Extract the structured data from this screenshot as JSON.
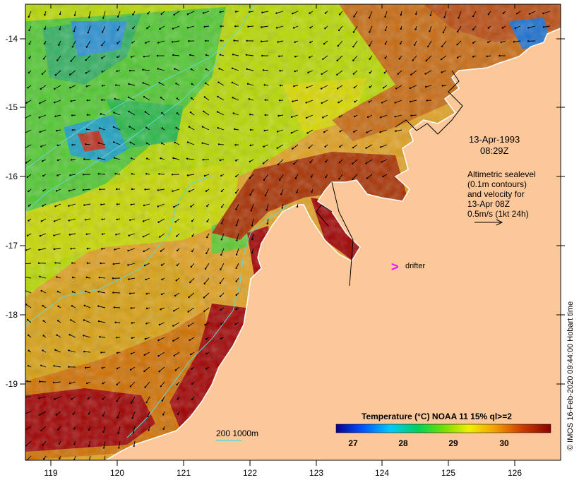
{
  "map": {
    "date_line": "13-Apr-1993",
    "time_line": "08:29Z",
    "altimetry_lines": [
      "Altimetric sealevel",
      "(0.1m contours)",
      "and velocity for",
      "13-Apr 08Z",
      "0.5m/s (1kt 24h)"
    ],
    "drifter_symbol": ">",
    "drifter_label": "drifter",
    "depth_legend_label": "200 1000m",
    "credit": "© IMOS 16-Feb-2020 09:44:00 Hobart time",
    "colors": {
      "land": "#fcc89a",
      "coastline": "#ffffff",
      "arrows": "#000000",
      "contour": "#5fd8d8",
      "drifter": "#ff00ff"
    },
    "x_ticks": [
      "119",
      "120",
      "121",
      "122",
      "123",
      "124",
      "125",
      "126"
    ],
    "y_ticks": [
      "-14",
      "-15",
      "-16",
      "-17",
      "-18",
      "-19"
    ],
    "legend": {
      "title": "Temperature (°C) NOAA 11 15% ql>=2",
      "ticks": [
        "27",
        "28",
        "29",
        "30"
      ]
    }
  }
}
